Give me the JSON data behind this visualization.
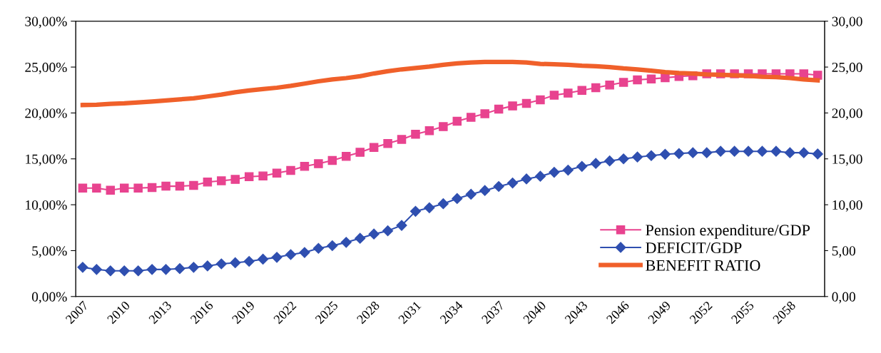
{
  "chart_data": {
    "type": "line",
    "categories": [
      "2007",
      null,
      null,
      "2010",
      null,
      null,
      "2013",
      null,
      null,
      "2016",
      null,
      null,
      "2019",
      null,
      null,
      "2022",
      null,
      null,
      "2025",
      null,
      null,
      "2028",
      null,
      null,
      "2031",
      null,
      null,
      "2034",
      null,
      null,
      "2037",
      null,
      null,
      "2040",
      null,
      null,
      "2043",
      null,
      null,
      "2046",
      null,
      null,
      "2049",
      null,
      null,
      "2052",
      null,
      null,
      "2055",
      null,
      null,
      "2058",
      null,
      null
    ],
    "series": [
      {
        "name": "Pension expenditure/GDP",
        "color": "#e8438f",
        "marker": "square",
        "values": [
          11.82,
          11.82,
          11.58,
          11.82,
          11.82,
          11.88,
          12.02,
          12.02,
          12.11,
          12.47,
          12.61,
          12.76,
          13.06,
          13.14,
          13.44,
          13.73,
          14.18,
          14.47,
          14.82,
          15.27,
          15.71,
          16.24,
          16.68,
          17.12,
          17.68,
          18.07,
          18.51,
          19.09,
          19.53,
          19.91,
          20.41,
          20.76,
          21.05,
          21.43,
          21.93,
          22.16,
          22.46,
          22.75,
          23.04,
          23.33,
          23.6,
          23.71,
          23.83,
          23.98,
          24.06,
          24.27,
          24.27,
          24.27,
          24.27,
          24.27,
          24.27,
          24.27,
          24.27,
          24.12
        ]
      },
      {
        "name": "DEFICIT/GDP",
        "color": "#2f4fb0",
        "marker": "diamond",
        "values": [
          3.18,
          2.95,
          2.8,
          2.8,
          2.8,
          2.95,
          2.95,
          3.04,
          3.18,
          3.33,
          3.56,
          3.68,
          3.83,
          4.07,
          4.27,
          4.57,
          4.8,
          5.25,
          5.54,
          5.9,
          6.34,
          6.81,
          7.16,
          7.75,
          9.28,
          9.67,
          10.11,
          10.67,
          11.14,
          11.55,
          11.99,
          12.37,
          12.81,
          13.1,
          13.54,
          13.77,
          14.18,
          14.5,
          14.77,
          15.0,
          15.2,
          15.35,
          15.5,
          15.58,
          15.67,
          15.67,
          15.82,
          15.82,
          15.82,
          15.82,
          15.82,
          15.67,
          15.67,
          15.53
        ]
      },
      {
        "name": "BENEFIT RATIO",
        "color": "#f0602a",
        "marker": "none",
        "values": [
          20.87,
          20.9,
          21.0,
          21.05,
          21.15,
          21.25,
          21.37,
          21.48,
          21.6,
          21.8,
          22.0,
          22.25,
          22.45,
          22.6,
          22.75,
          22.95,
          23.2,
          23.45,
          23.65,
          23.8,
          24.0,
          24.3,
          24.55,
          24.75,
          24.9,
          25.05,
          25.25,
          25.4,
          25.5,
          25.55,
          25.55,
          25.55,
          25.5,
          25.35,
          25.3,
          25.25,
          25.15,
          25.1,
          25.0,
          24.85,
          24.75,
          24.6,
          24.45,
          24.35,
          24.3,
          24.2,
          24.15,
          24.1,
          24.05,
          23.95,
          23.9,
          23.8,
          23.65,
          23.55
        ]
      }
    ],
    "ylim": [
      0,
      30
    ],
    "yticks": [
      {
        "value": 0,
        "label": "0,00%"
      },
      {
        "value": 5,
        "label": "5,00%"
      },
      {
        "value": 10,
        "label": "10,00%"
      },
      {
        "value": 15,
        "label": "15,00%"
      },
      {
        "value": 20,
        "label": "20,00%"
      },
      {
        "value": 25,
        "label": "25,00%"
      },
      {
        "value": 30,
        "label": "30,00%"
      }
    ],
    "y2lim": [
      0,
      30
    ],
    "y2ticks": [
      {
        "value": 0,
        "label": "0,00"
      },
      {
        "value": 5,
        "label": "5,00"
      },
      {
        "value": 10,
        "label": "10,00"
      },
      {
        "value": 15,
        "label": "15,00"
      },
      {
        "value": 20,
        "label": "20,00"
      },
      {
        "value": 25,
        "label": "25,00"
      },
      {
        "value": 30,
        "label": "30,00"
      }
    ],
    "legend": "bottom right",
    "line_style": "solid"
  }
}
